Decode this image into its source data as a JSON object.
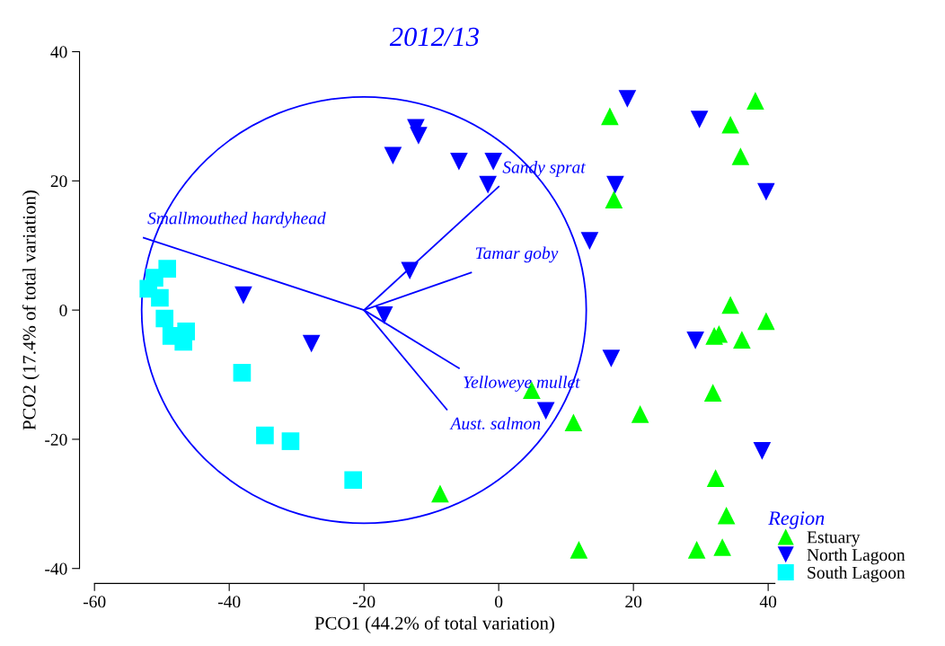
{
  "chart_data": {
    "type": "scatter",
    "title": "2012/13",
    "xlabel": "PCO1 (44.2% of total variation)",
    "ylabel": "PCO2 (17.4% of total variation)",
    "legend_title": "Region",
    "legend": "bottom right",
    "grid": false,
    "xlim": [
      -60,
      41
    ],
    "ylim": [
      -40,
      40
    ],
    "xticks": [
      -60,
      -40,
      -20,
      0,
      20,
      40
    ],
    "yticks": [
      -40,
      -20,
      0,
      20,
      40
    ],
    "series": [
      {
        "name": "Estuary",
        "type": "scatter",
        "marker": "triangle",
        "color": "#00ff00",
        "x": [
          38.1,
          16.5,
          34.4,
          35.9,
          17.1,
          34.4,
          39.7,
          32.0,
          32.7,
          36.1,
          31.8,
          4.9,
          11.1,
          21.0,
          32.2,
          33.8,
          33.2,
          29.4,
          11.9,
          -8.7
        ],
        "values": [
          32.4,
          30.0,
          28.7,
          23.8,
          17.1,
          0.8,
          -1.7,
          -4.0,
          -3.7,
          -4.6,
          -12.8,
          -12.4,
          -17.4,
          -16.1,
          -26.0,
          -31.8,
          -36.7,
          -37.1,
          -37.1,
          -28.4
        ]
      },
      {
        "name": "North Lagoon",
        "type": "scatter",
        "marker": "triangle_down",
        "color": "#0000ff",
        "x": [
          19.1,
          -12.3,
          -11.9,
          -15.7,
          -5.9,
          -0.8,
          -1.6,
          29.8,
          17.3,
          39.7,
          13.5,
          -13.2,
          -17.0,
          -37.9,
          -27.8,
          16.7,
          29.2,
          7.0,
          39.1
        ],
        "values": [
          32.7,
          28.2,
          27.0,
          23.9,
          23.0,
          23.0,
          19.4,
          29.5,
          19.4,
          18.3,
          10.7,
          6.1,
          -0.8,
          2.3,
          -5.2,
          -7.5,
          -4.7,
          -15.6,
          -21.8
        ]
      },
      {
        "name": "South Lagoon",
        "type": "scatter",
        "marker": "square",
        "color": "#00ffff",
        "x": [
          -49.2,
          -51.1,
          -52.0,
          -50.3,
          -49.6,
          -46.4,
          -48.6,
          -46.8,
          -38.1,
          -34.7,
          -30.9,
          -21.6
        ],
        "values": [
          6.4,
          5.0,
          3.3,
          1.9,
          -1.3,
          -3.3,
          -4.0,
          -4.9,
          -9.7,
          -19.4,
          -20.3,
          -26.3
        ]
      },
      {
        "name": "Smallmouthed hardyhead",
        "type": "line",
        "color": "#0000ff",
        "x": [
          -20,
          -52.7
        ],
        "values": [
          0,
          11.2
        ]
      },
      {
        "name": "Sandy sprat",
        "type": "line",
        "color": "#0000ff",
        "x": [
          -20,
          0
        ],
        "values": [
          0,
          19.1
        ]
      },
      {
        "name": "Tamar goby",
        "type": "line",
        "color": "#0000ff",
        "x": [
          -20,
          -4.1
        ],
        "values": [
          0,
          5.8
        ]
      },
      {
        "name": "Yelloweye mullet",
        "type": "line",
        "color": "#0000ff",
        "x": [
          -20,
          -5.9
        ],
        "values": [
          0,
          -9.0
        ]
      },
      {
        "name": "Aust. salmon",
        "type": "line",
        "color": "#0000ff",
        "x": [
          -20,
          -7.7
        ],
        "values": [
          0,
          -15.4
        ]
      }
    ]
  }
}
